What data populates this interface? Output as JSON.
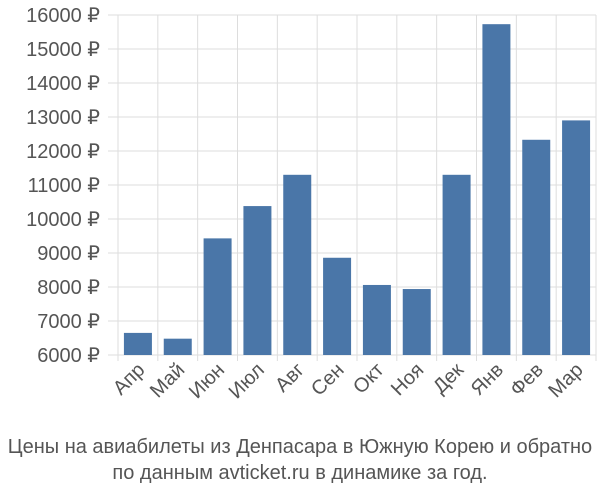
{
  "chart_data": {
    "type": "bar",
    "categories": [
      "Апр",
      "Май",
      "Июн",
      "Июл",
      "Авг",
      "Сен",
      "Окт",
      "Ноя",
      "Дек",
      "Янв",
      "Фев",
      "Мар"
    ],
    "values": [
      6650,
      6480,
      9430,
      10380,
      11300,
      8860,
      8060,
      7940,
      11300,
      15730,
      12330,
      12900
    ],
    "ylim": [
      6000,
      16000
    ],
    "yticks": [
      6000,
      7000,
      8000,
      9000,
      10000,
      11000,
      12000,
      13000,
      14000,
      15000,
      16000
    ],
    "ytick_labels": [
      "6000 ₽",
      "7000 ₽",
      "8000 ₽",
      "9000 ₽",
      "10000 ₽",
      "11000 ₽",
      "12000 ₽",
      "13000 ₽",
      "14000 ₽",
      "15000 ₽",
      "16000 ₽"
    ],
    "grid": true,
    "bar_color": "#4a76a8",
    "grid_color": "#dddddd"
  },
  "caption": {
    "line1": "Цены на авиабилеты из Денпасара в Южную Корею и обратно",
    "line2": "по данным avticket.ru в динамике за год."
  }
}
